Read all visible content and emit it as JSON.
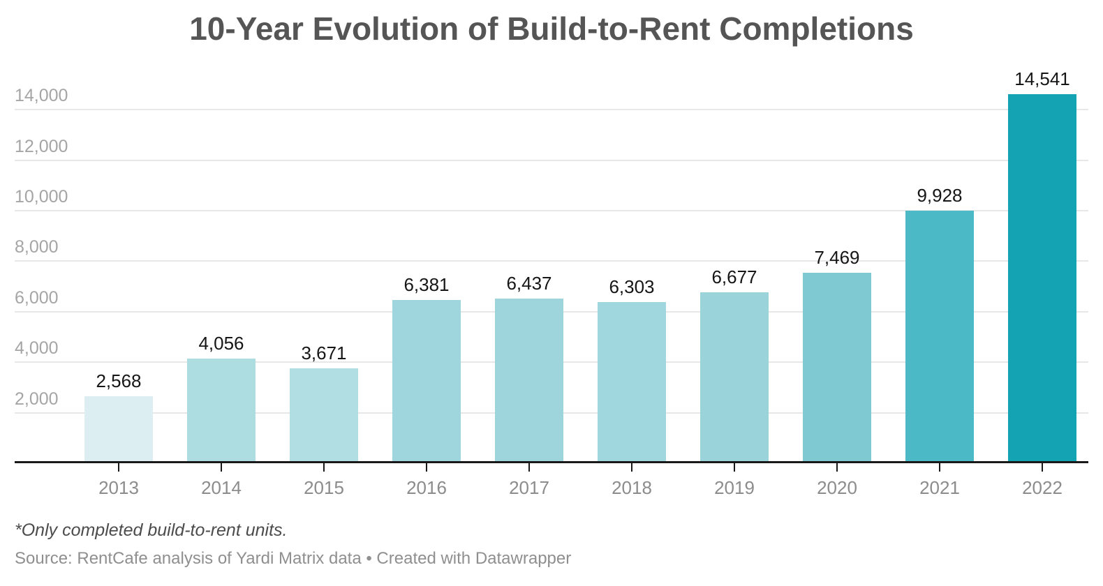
{
  "title": "10-Year Evolution of Build-to-Rent Completions",
  "footnote": "*Only completed build-to-rent units.",
  "source": "Source: RentCafe analysis of Yardi Matrix data • Created with Datawrapper",
  "chart_data": {
    "type": "bar",
    "title": "10-Year Evolution of Build-to-Rent Completions",
    "categories": [
      "2013",
      "2014",
      "2015",
      "2016",
      "2017",
      "2018",
      "2019",
      "2020",
      "2021",
      "2022"
    ],
    "values": [
      2568,
      4056,
      3671,
      6381,
      6437,
      6303,
      6677,
      7469,
      9928,
      14541
    ],
    "value_labels": [
      "2,568",
      "4,056",
      "3,671",
      "6,381",
      "6,437",
      "6,303",
      "6,677",
      "7,469",
      "9,928",
      "14,541"
    ],
    "bar_colors": [
      "#dceef2",
      "#addce1",
      "#b1dee3",
      "#9fd6dd",
      "#9ed5dc",
      "#a0d6dd",
      "#9bd3da",
      "#7fc9d3",
      "#4cb9c6",
      "#14a3b2"
    ],
    "xlabel": "",
    "ylabel": "",
    "ylim": [
      0,
      14541
    ],
    "yticks": [
      2000,
      4000,
      6000,
      8000,
      10000,
      12000,
      14000
    ],
    "ytick_labels": [
      "2,000",
      "4,000",
      "6,000",
      "8,000",
      "10,000",
      "12,000",
      "14,000"
    ],
    "grid": true,
    "legend_position": "none"
  },
  "colors": {
    "axis_line": "#191919",
    "gridline": "#e7e7e7",
    "title_text": "#555555",
    "ytick_text": "#a5a5a5",
    "xtick_text": "#8c8c8c",
    "value_text": "#161616",
    "footnote_text": "#4c4c4c",
    "source_text": "#8f8f8f"
  }
}
